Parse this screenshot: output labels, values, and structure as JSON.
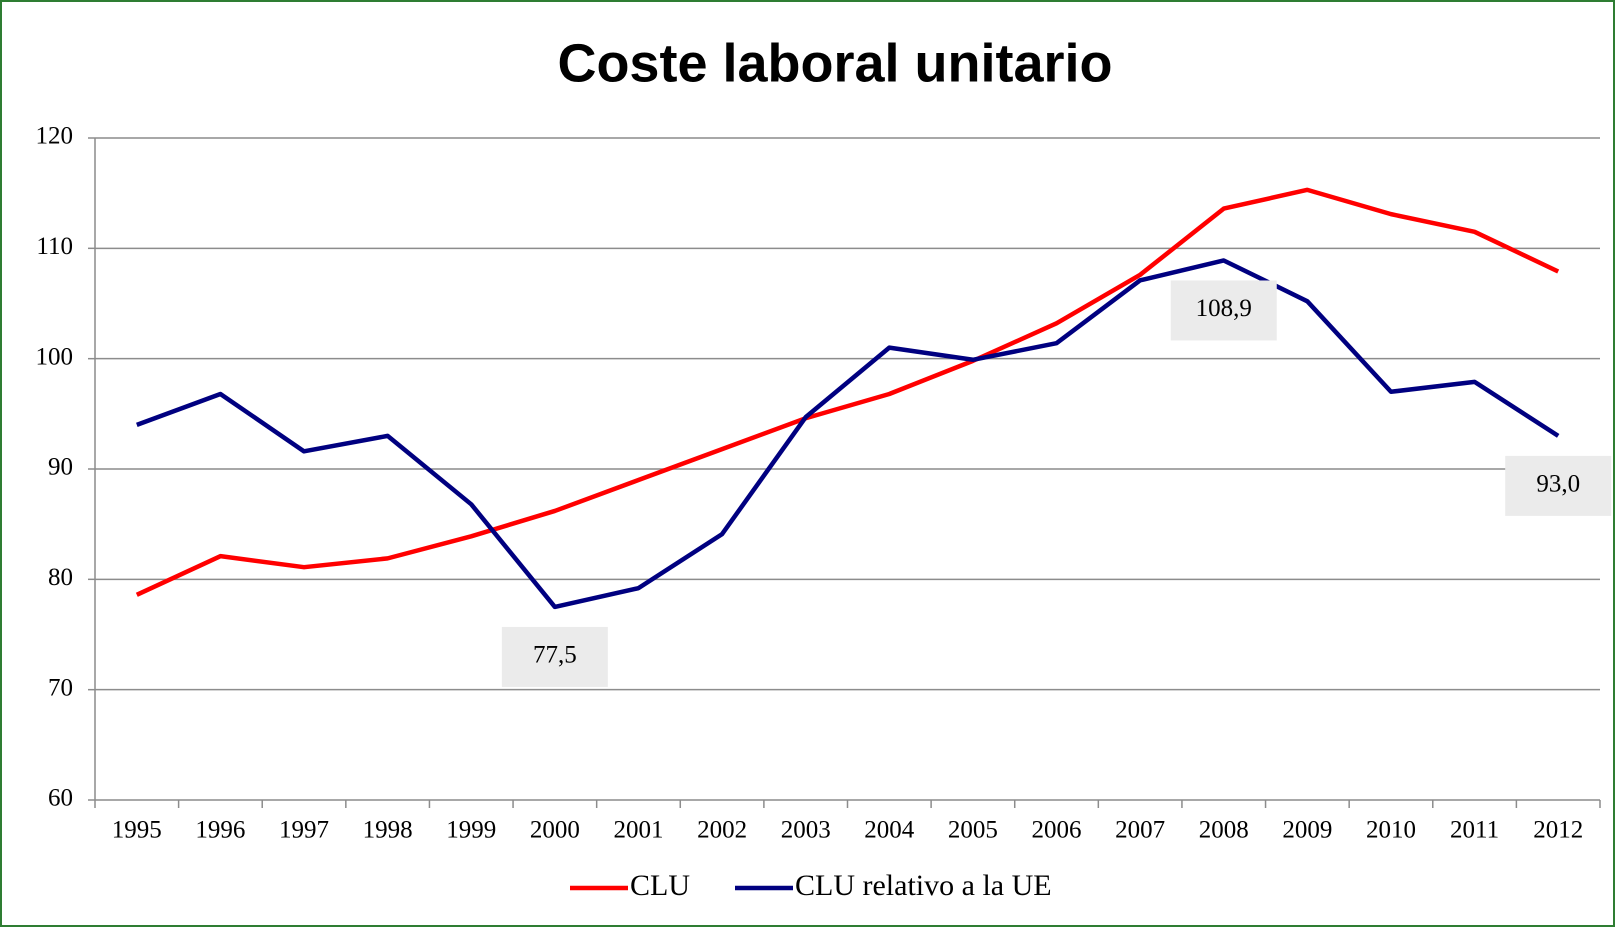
{
  "chart_data": {
    "type": "line",
    "title": "Coste laboral unitario",
    "categories": [
      "1995",
      "1996",
      "1997",
      "1998",
      "1999",
      "2000",
      "2001",
      "2002",
      "2003",
      "2004",
      "2005",
      "2006",
      "2007",
      "2008",
      "2009",
      "2010",
      "2011",
      "2012"
    ],
    "series": [
      {
        "name": "CLU",
        "color": "#ff0000",
        "values": [
          78.6,
          82.1,
          81.1,
          81.9,
          83.9,
          86.2,
          89.0,
          91.8,
          94.6,
          96.8,
          99.8,
          103.2,
          107.6,
          113.6,
          115.3,
          113.1,
          111.5,
          107.9
        ]
      },
      {
        "name": "CLU relativo a la UE",
        "color": "#000080",
        "values": [
          94.0,
          96.8,
          91.6,
          93.0,
          86.8,
          77.5,
          79.2,
          84.1,
          94.7,
          101.0,
          99.9,
          101.4,
          107.1,
          108.9,
          105.2,
          97.0,
          97.9,
          93.0
        ],
        "value_labels": [
          null,
          null,
          null,
          null,
          null,
          "77,5",
          null,
          null,
          null,
          null,
          null,
          null,
          null,
          "108,9",
          null,
          null,
          null,
          "93,0"
        ]
      }
    ],
    "ylim": [
      60,
      120
    ],
    "yticks": [
      60,
      70,
      80,
      90,
      100,
      110,
      120
    ],
    "grid": true,
    "legend": "bottom"
  }
}
